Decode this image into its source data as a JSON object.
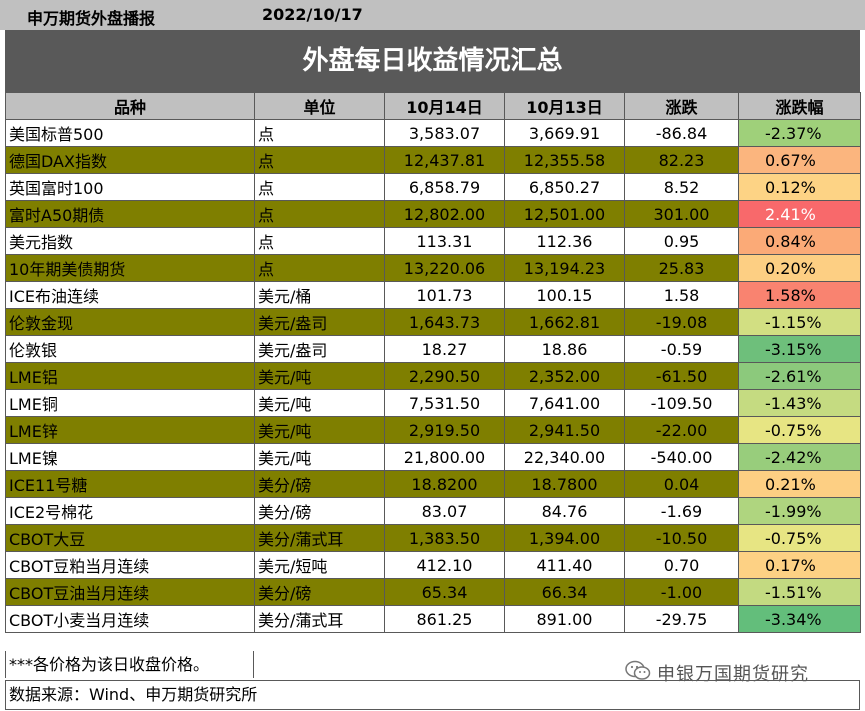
{
  "header": {
    "org": "申万期货外盘播报",
    "date": "2022/10/17"
  },
  "title": "外盘每日收益情况汇总",
  "columns": [
    "品种",
    "单位",
    "10月14日",
    "10月13日",
    "涨跌",
    "涨跌幅"
  ],
  "rows": [
    {
      "name": "美国标普500",
      "unit": "点",
      "d1": "3,583.07",
      "d2": "3,669.91",
      "chg": "-86.84",
      "pct": "-2.37%",
      "pct_color": "#9fd07a",
      "pct_text_color": "#000000",
      "highlight": false
    },
    {
      "name": "德国DAX指数",
      "unit": "点",
      "d1": "12,437.81",
      "d2": "12,355.58",
      "chg": "82.23",
      "pct": "0.67%",
      "pct_color": "#fbb57e",
      "pct_text_color": "#000000",
      "highlight": true
    },
    {
      "name": "英国富时100",
      "unit": "点",
      "d1": "6,858.79",
      "d2": "6,850.27",
      "chg": "8.52",
      "pct": "0.12%",
      "pct_color": "#fdd385",
      "pct_text_color": "#000000",
      "highlight": false
    },
    {
      "name": "富时A50期债",
      "unit": "点",
      "d1": "12,802.00",
      "d2": "12,501.00",
      "chg": "301.00",
      "pct": "2.41%",
      "pct_color": "#f8696b",
      "pct_text_color": "#ffffff",
      "highlight": true
    },
    {
      "name": "美元指数",
      "unit": "点",
      "d1": "113.31",
      "d2": "112.36",
      "chg": "0.95",
      "pct": "0.84%",
      "pct_color": "#fbaa77",
      "pct_text_color": "#000000",
      "highlight": false
    },
    {
      "name": "10年期美债期货",
      "unit": "点",
      "d1": "13,220.06",
      "d2": "13,194.23",
      "chg": "25.83",
      "pct": "0.20%",
      "pct_color": "#fdcf83",
      "pct_text_color": "#000000",
      "highlight": true
    },
    {
      "name": "ICE布油连续",
      "unit": "美元/桶",
      "d1": "101.73",
      "d2": "100.15",
      "chg": "1.58",
      "pct": "1.58%",
      "pct_color": "#f98370",
      "pct_text_color": "#000000",
      "highlight": false
    },
    {
      "name": "伦敦金现",
      "unit": "美元/盎司",
      "d1": "1,643.73",
      "d2": "1,662.81",
      "chg": "-19.08",
      "pct": "-1.15%",
      "pct_color": "#d2df82",
      "pct_text_color": "#000000",
      "highlight": true
    },
    {
      "name": "伦敦银",
      "unit": "美元/盎司",
      "d1": "18.27",
      "d2": "18.86",
      "chg": "-0.59",
      "pct": "-3.15%",
      "pct_color": "#6ebf7b",
      "pct_text_color": "#000000",
      "highlight": false
    },
    {
      "name": "LME铝",
      "unit": "美元/吨",
      "d1": "2,290.50",
      "d2": "2,352.00",
      "chg": "-61.50",
      "pct": "-2.61%",
      "pct_color": "#8cc97c",
      "pct_text_color": "#000000",
      "highlight": true
    },
    {
      "name": "LME铜",
      "unit": "美元/吨",
      "d1": "7,531.50",
      "d2": "7,641.00",
      "chg": "-109.50",
      "pct": "-1.43%",
      "pct_color": "#c5db81",
      "pct_text_color": "#000000",
      "highlight": false
    },
    {
      "name": "LME锌",
      "unit": "美元/吨",
      "d1": "2,919.50",
      "d2": "2,941.50",
      "chg": "-22.00",
      "pct": "-0.75%",
      "pct_color": "#e7e583",
      "pct_text_color": "#000000",
      "highlight": true
    },
    {
      "name": "LME镍",
      "unit": "美元/吨",
      "d1": "21,800.00",
      "d2": "22,340.00",
      "chg": "-540.00",
      "pct": "-2.42%",
      "pct_color": "#98cd7c",
      "pct_text_color": "#000000",
      "highlight": false
    },
    {
      "name": "ICE11号糖",
      "unit": "美分/磅",
      "d1": "18.8200",
      "d2": "18.7800",
      "chg": "0.04",
      "pct": "0.21%",
      "pct_color": "#fdcf83",
      "pct_text_color": "#000000",
      "highlight": true
    },
    {
      "name": "ICE2号棉花",
      "unit": "美分/磅",
      "d1": "83.07",
      "d2": "84.76",
      "chg": "-1.69",
      "pct": "-1.99%",
      "pct_color": "#afd57f",
      "pct_text_color": "#000000",
      "highlight": false
    },
    {
      "name": "CBOT大豆",
      "unit": "美分/蒲式耳",
      "d1": "1,383.50",
      "d2": "1,394.00",
      "chg": "-10.50",
      "pct": "-0.75%",
      "pct_color": "#e7e583",
      "pct_text_color": "#000000",
      "highlight": true
    },
    {
      "name": "CBOT豆粕当月连续",
      "unit": "美元/短吨",
      "d1": "412.10",
      "d2": "411.40",
      "chg": "0.70",
      "pct": "0.17%",
      "pct_color": "#fdd184",
      "pct_text_color": "#000000",
      "highlight": false
    },
    {
      "name": "CBOT豆油当月连续",
      "unit": "美分/磅",
      "d1": "65.34",
      "d2": "66.34",
      "chg": "-1.00",
      "pct": "-1.51%",
      "pct_color": "#c3da81",
      "pct_text_color": "#000000",
      "highlight": true
    },
    {
      "name": "CBOT小麦当月连续",
      "unit": "美分/蒲式耳",
      "d1": "861.25",
      "d2": "891.00",
      "chg": "-29.75",
      "pct": "-3.34%",
      "pct_color": "#63be7b",
      "pct_text_color": "#000000",
      "highlight": false
    }
  ],
  "note": "***各价格为该日收盘价格。",
  "source": "数据来源：Wind、申万期货研究所",
  "watermark": "申银万国期货研究"
}
